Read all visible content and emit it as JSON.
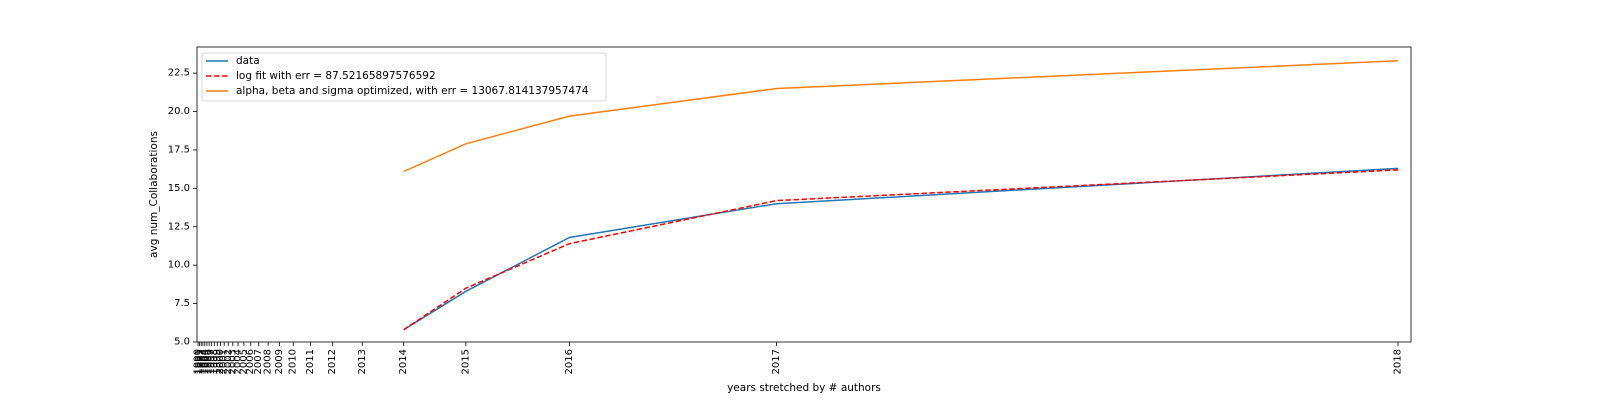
{
  "chart_data": {
    "type": "line",
    "xlabel": "years stretched by # authors",
    "ylabel": "avg num_Collaborations",
    "x_ticks": [
      "1990",
      "1991",
      "1992",
      "1993",
      "1994",
      "1995",
      "1996",
      "1997",
      "1998",
      "1999",
      "2000",
      "2001",
      "2002",
      "2003",
      "2004",
      "2005",
      "2006",
      "2007",
      "2008",
      "2009",
      "2010",
      "2011",
      "2012",
      "2013",
      "2014",
      "2015",
      "2016",
      "2017",
      "2018"
    ],
    "x": [
      "2014",
      "2015",
      "2016",
      "2017",
      "2018"
    ],
    "ylim": [
      5.0,
      24.2
    ],
    "y_ticks": [
      "5.0",
      "7.5",
      "10.0",
      "12.5",
      "15.0",
      "17.5",
      "20.0",
      "22.5"
    ],
    "grid": false,
    "legend_position": "top-left",
    "series": [
      {
        "name": "data",
        "color": "#1f77b4",
        "style": "solid",
        "values": [
          5.8,
          8.3,
          11.8,
          14.0,
          16.3
        ]
      },
      {
        "name": "log fit with err = 87.52165897576592",
        "color": "#ff0000",
        "style": "dashed",
        "values": [
          5.8,
          8.5,
          11.4,
          14.2,
          16.2
        ]
      },
      {
        "name": "alpha, beta and sigma optimized, with err = 13067.814137957474",
        "color": "#ff7f0e",
        "style": "solid",
        "values": [
          16.1,
          17.9,
          19.7,
          21.5,
          23.3
        ]
      }
    ]
  }
}
